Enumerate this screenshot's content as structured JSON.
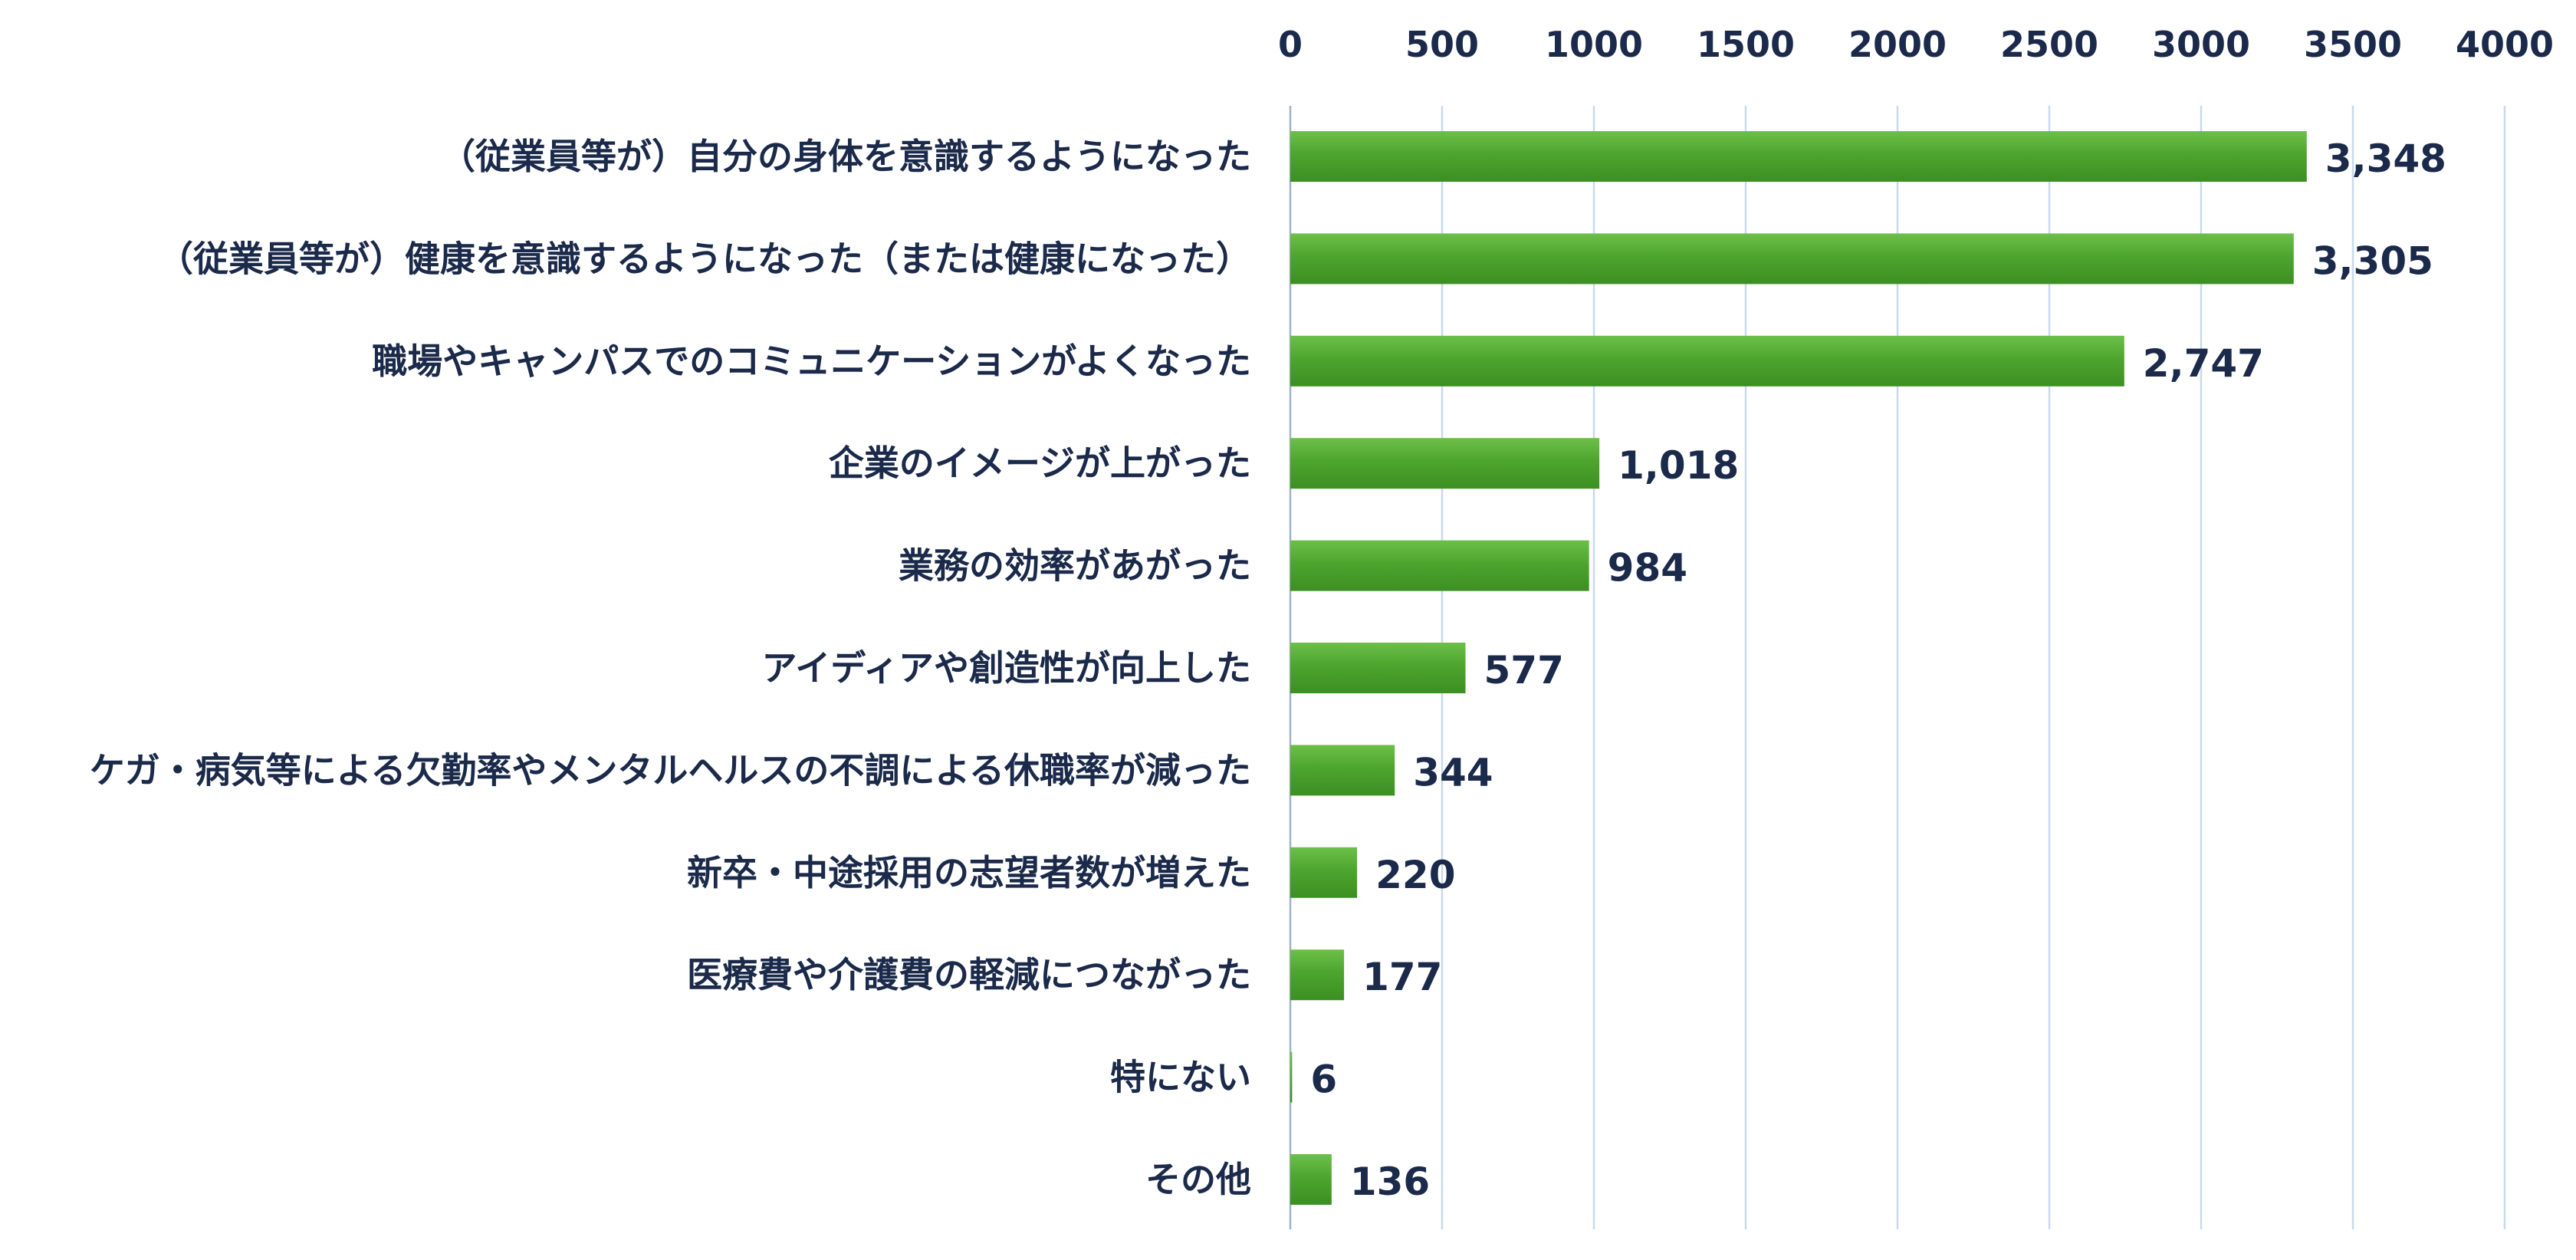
{
  "chart_data": {
    "type": "bar",
    "orientation": "horizontal",
    "categories": [
      "（従業員等が）自分の身体を意識するようになった",
      "（従業員等が）健康を意識するようになった（または健康になった）",
      "職場やキャンパスでのコミュニケーションがよくなった",
      "企業のイメージが上がった",
      "業務の効率があがった",
      "アイディアや創造性が向上した",
      "ケガ・病気等による欠勤率やメンタルヘルスの不調による休職率が減った",
      "新卒・中途採用の志望者数が増えた",
      "医療費や介護費の軽減につながった",
      "特にない",
      "その他"
    ],
    "values": [
      3348,
      3305,
      2747,
      1018,
      984,
      577,
      344,
      220,
      177,
      6,
      136
    ],
    "value_labels": [
      "3,348",
      "3,305",
      "2,747",
      "1,018",
      "984",
      "577",
      "344",
      "220",
      "177",
      "6",
      "136"
    ],
    "xlim": [
      0,
      4000
    ],
    "x_ticks": [
      "0",
      "500",
      "1000",
      "1500",
      "2000",
      "2500",
      "3000",
      "3500",
      "4000"
    ],
    "x_tick_values": [
      0,
      500,
      1000,
      1500,
      2000,
      2500,
      3000,
      3500,
      4000
    ],
    "x_axis_position": "top",
    "grid": true,
    "legend": "none",
    "title": "",
    "xlabel": "",
    "ylabel": "",
    "bar_color": "#4ea52e",
    "bar_color_light": "#6cc04a",
    "bar_color_dark": "#3c8f22",
    "grid_color": "#c9d9ec",
    "text_color": "#1b2a4a"
  }
}
